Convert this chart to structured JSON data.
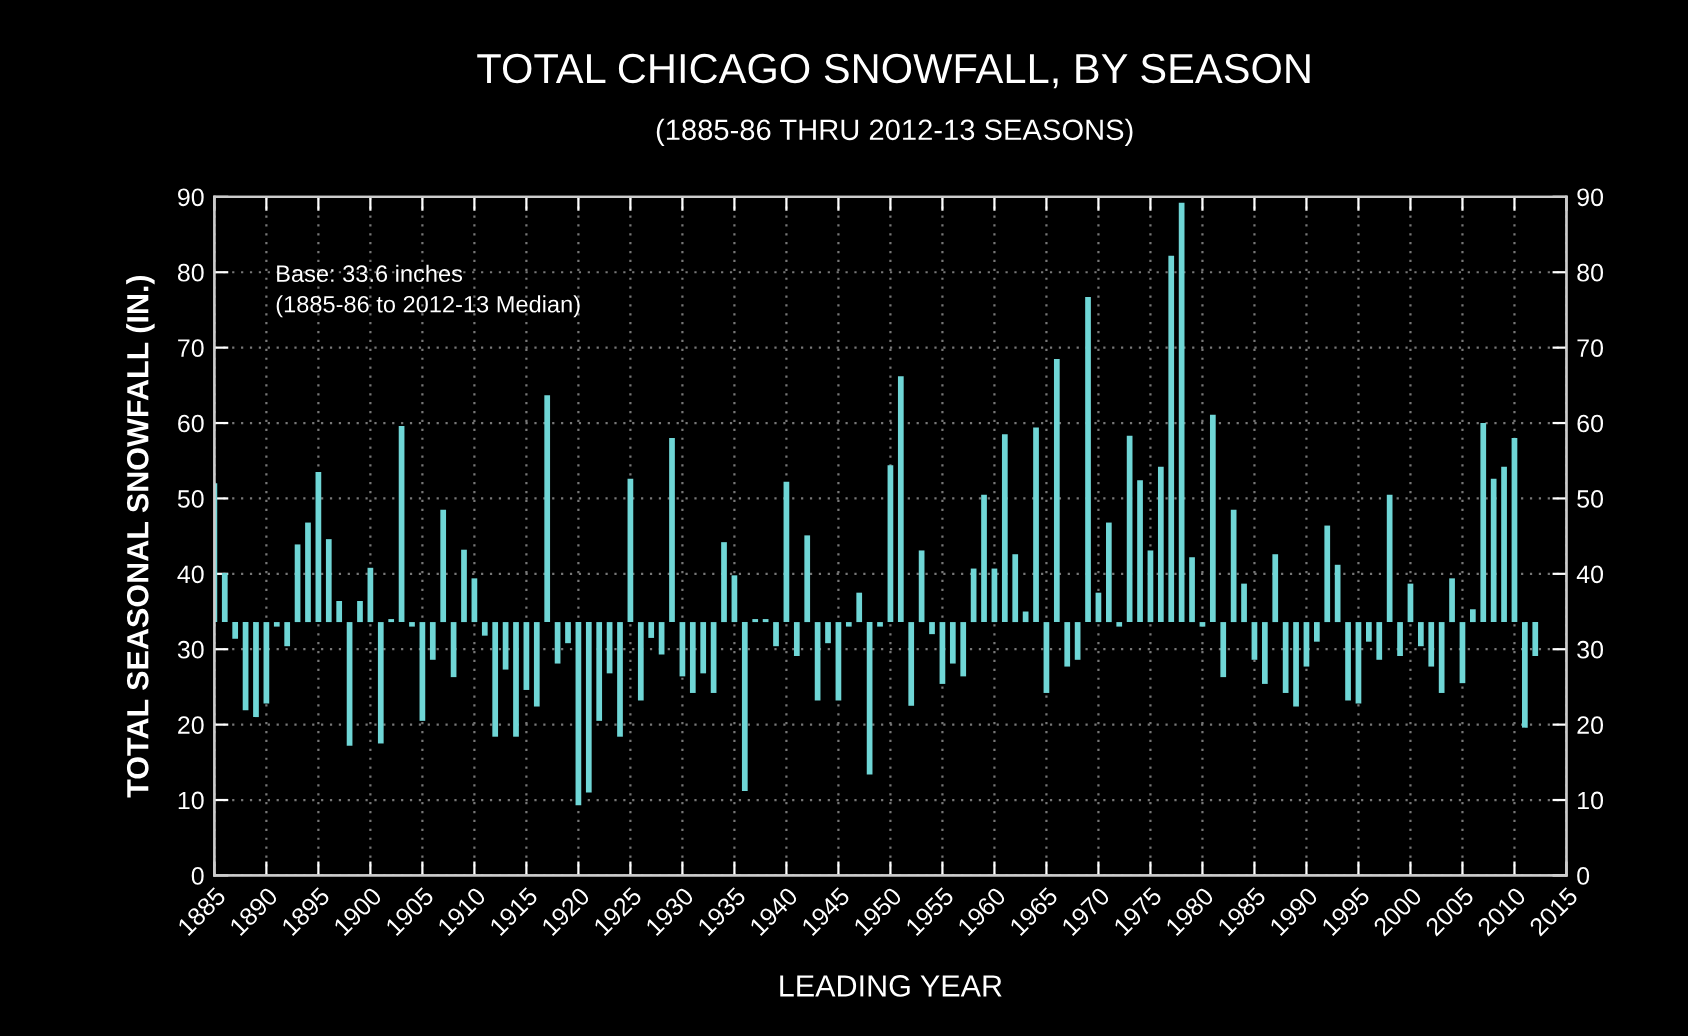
{
  "chart_data": {
    "type": "bar",
    "title": "TOTAL CHICAGO SNOWFALL, BY SEASON",
    "subtitle": "(1885-86 THRU 2012-13 SEASONS)",
    "xlabel": "LEADING YEAR",
    "ylabel": "TOTAL SEASONAL SNOWFALL (IN.)",
    "annotations": [
      "Base: 33.6 inches\n(1885-86 to 2012-13 Median)"
    ],
    "x": [
      1885,
      1886,
      1887,
      1888,
      1889,
      1890,
      1891,
      1892,
      1893,
      1894,
      1895,
      1896,
      1897,
      1898,
      1899,
      1900,
      1901,
      1902,
      1903,
      1904,
      1905,
      1906,
      1907,
      1908,
      1909,
      1910,
      1911,
      1912,
      1913,
      1914,
      1915,
      1916,
      1917,
      1918,
      1919,
      1920,
      1921,
      1922,
      1923,
      1924,
      1925,
      1926,
      1927,
      1928,
      1929,
      1930,
      1931,
      1932,
      1933,
      1934,
      1935,
      1936,
      1937,
      1938,
      1939,
      1940,
      1941,
      1942,
      1943,
      1944,
      1945,
      1946,
      1947,
      1948,
      1949,
      1950,
      1951,
      1952,
      1953,
      1954,
      1955,
      1956,
      1957,
      1958,
      1959,
      1960,
      1961,
      1962,
      1963,
      1964,
      1965,
      1966,
      1967,
      1968,
      1969,
      1970,
      1971,
      1972,
      1973,
      1974,
      1975,
      1976,
      1977,
      1978,
      1979,
      1980,
      1981,
      1982,
      1983,
      1984,
      1985,
      1986,
      1987,
      1988,
      1989,
      1990,
      1991,
      1992,
      1993,
      1994,
      1995,
      1996,
      1997,
      1998,
      1999,
      2000,
      2001,
      2002,
      2003,
      2004,
      2005,
      2006,
      2007,
      2008,
      2009,
      2010,
      2011,
      2012
    ],
    "base": [
      33.6,
      33.6,
      33.6,
      33.6,
      33.6,
      33.6,
      33.6,
      33.6,
      33.6,
      33.6,
      33.6,
      33.6,
      33.6,
      33.6,
      33.6,
      33.6,
      33.6,
      33.6,
      33.6,
      33.6,
      33.6,
      33.6,
      33.6,
      33.6,
      33.6,
      33.6,
      33.6,
      33.6,
      33.6,
      33.6,
      33.6,
      33.6,
      33.6,
      33.6,
      33.6,
      33.6,
      33.6,
      33.6,
      33.6,
      33.6,
      33.6,
      33.6,
      33.6,
      33.6,
      33.6,
      33.6,
      33.6,
      33.6,
      33.6,
      33.6,
      33.6,
      33.6,
      33.6,
      33.6,
      33.6,
      33.6,
      33.6,
      33.6,
      33.6,
      33.6,
      33.6,
      33.6,
      33.6,
      33.6,
      33.6,
      33.6,
      33.6,
      33.6,
      33.6,
      33.6,
      33.6,
      33.6,
      33.6,
      33.6,
      33.6,
      33.6,
      33.6,
      33.6,
      33.6,
      33.6,
      33.6,
      33.6,
      33.6,
      33.6,
      33.6,
      33.6,
      33.6,
      33.6,
      33.6,
      33.6,
      33.6,
      33.6,
      33.6,
      33.6,
      33.6,
      33.6,
      33.6,
      33.6,
      33.6,
      33.6,
      33.6,
      33.6,
      33.6,
      33.6,
      33.6,
      33.6,
      33.6,
      33.6,
      33.6,
      33.6,
      33.6,
      33.6,
      33.6,
      33.6,
      33.6,
      33.6,
      33.6,
      33.6,
      33.6,
      33.6,
      33.6,
      33.6,
      33.6,
      33.6,
      33.6,
      33.6,
      33.6,
      33.6
    ],
    "values": [
      18.4,
      6.5,
      -2.2,
      -11.7,
      -12.6,
      -10.8,
      -0.6,
      -3.2,
      10.3,
      13.2,
      19.9,
      11,
      2.8,
      -16.4,
      2.8,
      7.2,
      -16.1,
      0.4,
      26,
      -0.6,
      -13.1,
      -5,
      14.9,
      -7.3,
      9.6,
      5.8,
      -1.8,
      -15.2,
      -6.3,
      -15.2,
      -9,
      -11.2,
      30.1,
      -5.5,
      -2.8,
      -24.3,
      -22.6,
      -13.1,
      -6.8,
      -15.2,
      19,
      -10.4,
      -2.1,
      -4.3,
      24.4,
      -7.2,
      -9.4,
      -6.8,
      -9.4,
      10.6,
      6.2,
      -22.4,
      0.4,
      0.4,
      -3.2,
      18.6,
      -4.5,
      11.5,
      -10.4,
      -2.8,
      -10.4,
      -0.6,
      3.9,
      -20.2,
      -0.6,
      20.8,
      32.6,
      -11.1,
      9.5,
      -1.6,
      -8.2,
      -5.5,
      -7.2,
      7.1,
      16.9,
      7.1,
      24.9,
      9,
      1.4,
      25.8,
      -9.4,
      34.9,
      -5.9,
      -5,
      43.1,
      3.9,
      13.2,
      -0.6,
      24.7,
      18.8,
      9.5,
      20.6,
      48.6,
      55.6,
      8.6,
      -0.6,
      27.5,
      -7.3,
      14.9,
      5.1,
      -5,
      -8.2,
      9,
      -9.4,
      -11.2,
      -5.9,
      -2.6,
      12.8,
      7.6,
      -10.4,
      -10.8,
      -2.6,
      -5,
      16.9,
      -4.5,
      5.1,
      -3.2,
      -5.9,
      -9.4,
      5.8,
      -8.1,
      1.7,
      26.4,
      19,
      20.6,
      24.4,
      -14,
      -4.5
    ],
    "color": "#6fd6d6",
    "xlim": [
      1885,
      2015
    ],
    "xticks": [
      1885,
      1890,
      1895,
      1900,
      1905,
      1910,
      1915,
      1920,
      1925,
      1930,
      1935,
      1940,
      1945,
      1950,
      1955,
      1960,
      1965,
      1970,
      1975,
      1980,
      1985,
      1990,
      1995,
      2000,
      2005,
      2010,
      2015
    ],
    "ylim": [
      0,
      90
    ],
    "yticks": [
      0,
      10,
      20,
      30,
      40,
      50,
      60,
      70,
      80,
      90
    ],
    "y2lim": [
      0,
      90
    ],
    "y2ticks": [
      0,
      10,
      20,
      30,
      40,
      50,
      60,
      70,
      80,
      90
    ],
    "grid": true
  }
}
